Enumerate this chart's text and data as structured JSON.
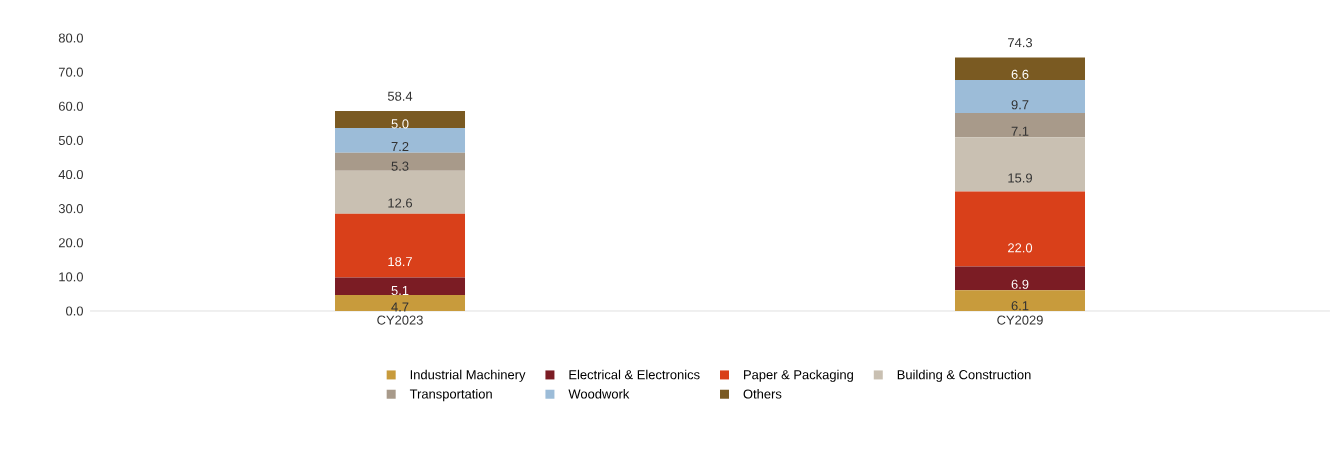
{
  "chart_data": {
    "type": "bar",
    "stacked": true,
    "legend": "bottom",
    "categories": [
      "CY2023",
      "CY2029"
    ],
    "series": [
      {
        "name": "Industrial Machinery",
        "color": "#c89b3c",
        "values": [
          4.7,
          6.1
        ],
        "value_labels": [
          "4.7",
          "6.1"
        ]
      },
      {
        "name": "Electrical & Electronics",
        "color": "#7b1c24",
        "values": [
          5.1,
          6.9
        ],
        "value_labels": [
          "5.1",
          "6.9"
        ]
      },
      {
        "name": "Paper & Packaging",
        "color": "#d9401a",
        "values": [
          18.7,
          22.0
        ],
        "value_labels": [
          "18.7",
          "22.0"
        ]
      },
      {
        "name": "Building & Construction",
        "color": "#c9c0b2",
        "values": [
          12.6,
          15.9
        ],
        "value_labels": [
          "12.6",
          "15.9"
        ]
      },
      {
        "name": "Transportation",
        "color": "#a89a8a",
        "values": [
          5.3,
          7.1
        ],
        "value_labels": [
          "5.3",
          "7.1"
        ]
      },
      {
        "name": "Woodwork",
        "color": "#9cbcd8",
        "values": [
          7.2,
          9.7
        ],
        "value_labels": [
          "7.2",
          "9.7"
        ]
      },
      {
        "name": "Others",
        "color": "#7a5a22",
        "values": [
          5.0,
          6.6
        ],
        "value_labels": [
          "5.0",
          "6.6"
        ]
      }
    ],
    "totals": [
      "58.4",
      "74.3"
    ],
    "ylim": [
      0,
      80
    ],
    "yticks": [
      {
        "value": 0,
        "label": "0.0"
      },
      {
        "value": 10,
        "label": "10.0"
      },
      {
        "value": 20,
        "label": "20.0"
      },
      {
        "value": 30,
        "label": "30.0"
      },
      {
        "value": 40,
        "label": "40.0"
      },
      {
        "value": 50,
        "label": "50.0"
      },
      {
        "value": 60,
        "label": "60.0"
      },
      {
        "value": 70,
        "label": "70.0"
      },
      {
        "value": 80,
        "label": "80.0"
      }
    ]
  }
}
